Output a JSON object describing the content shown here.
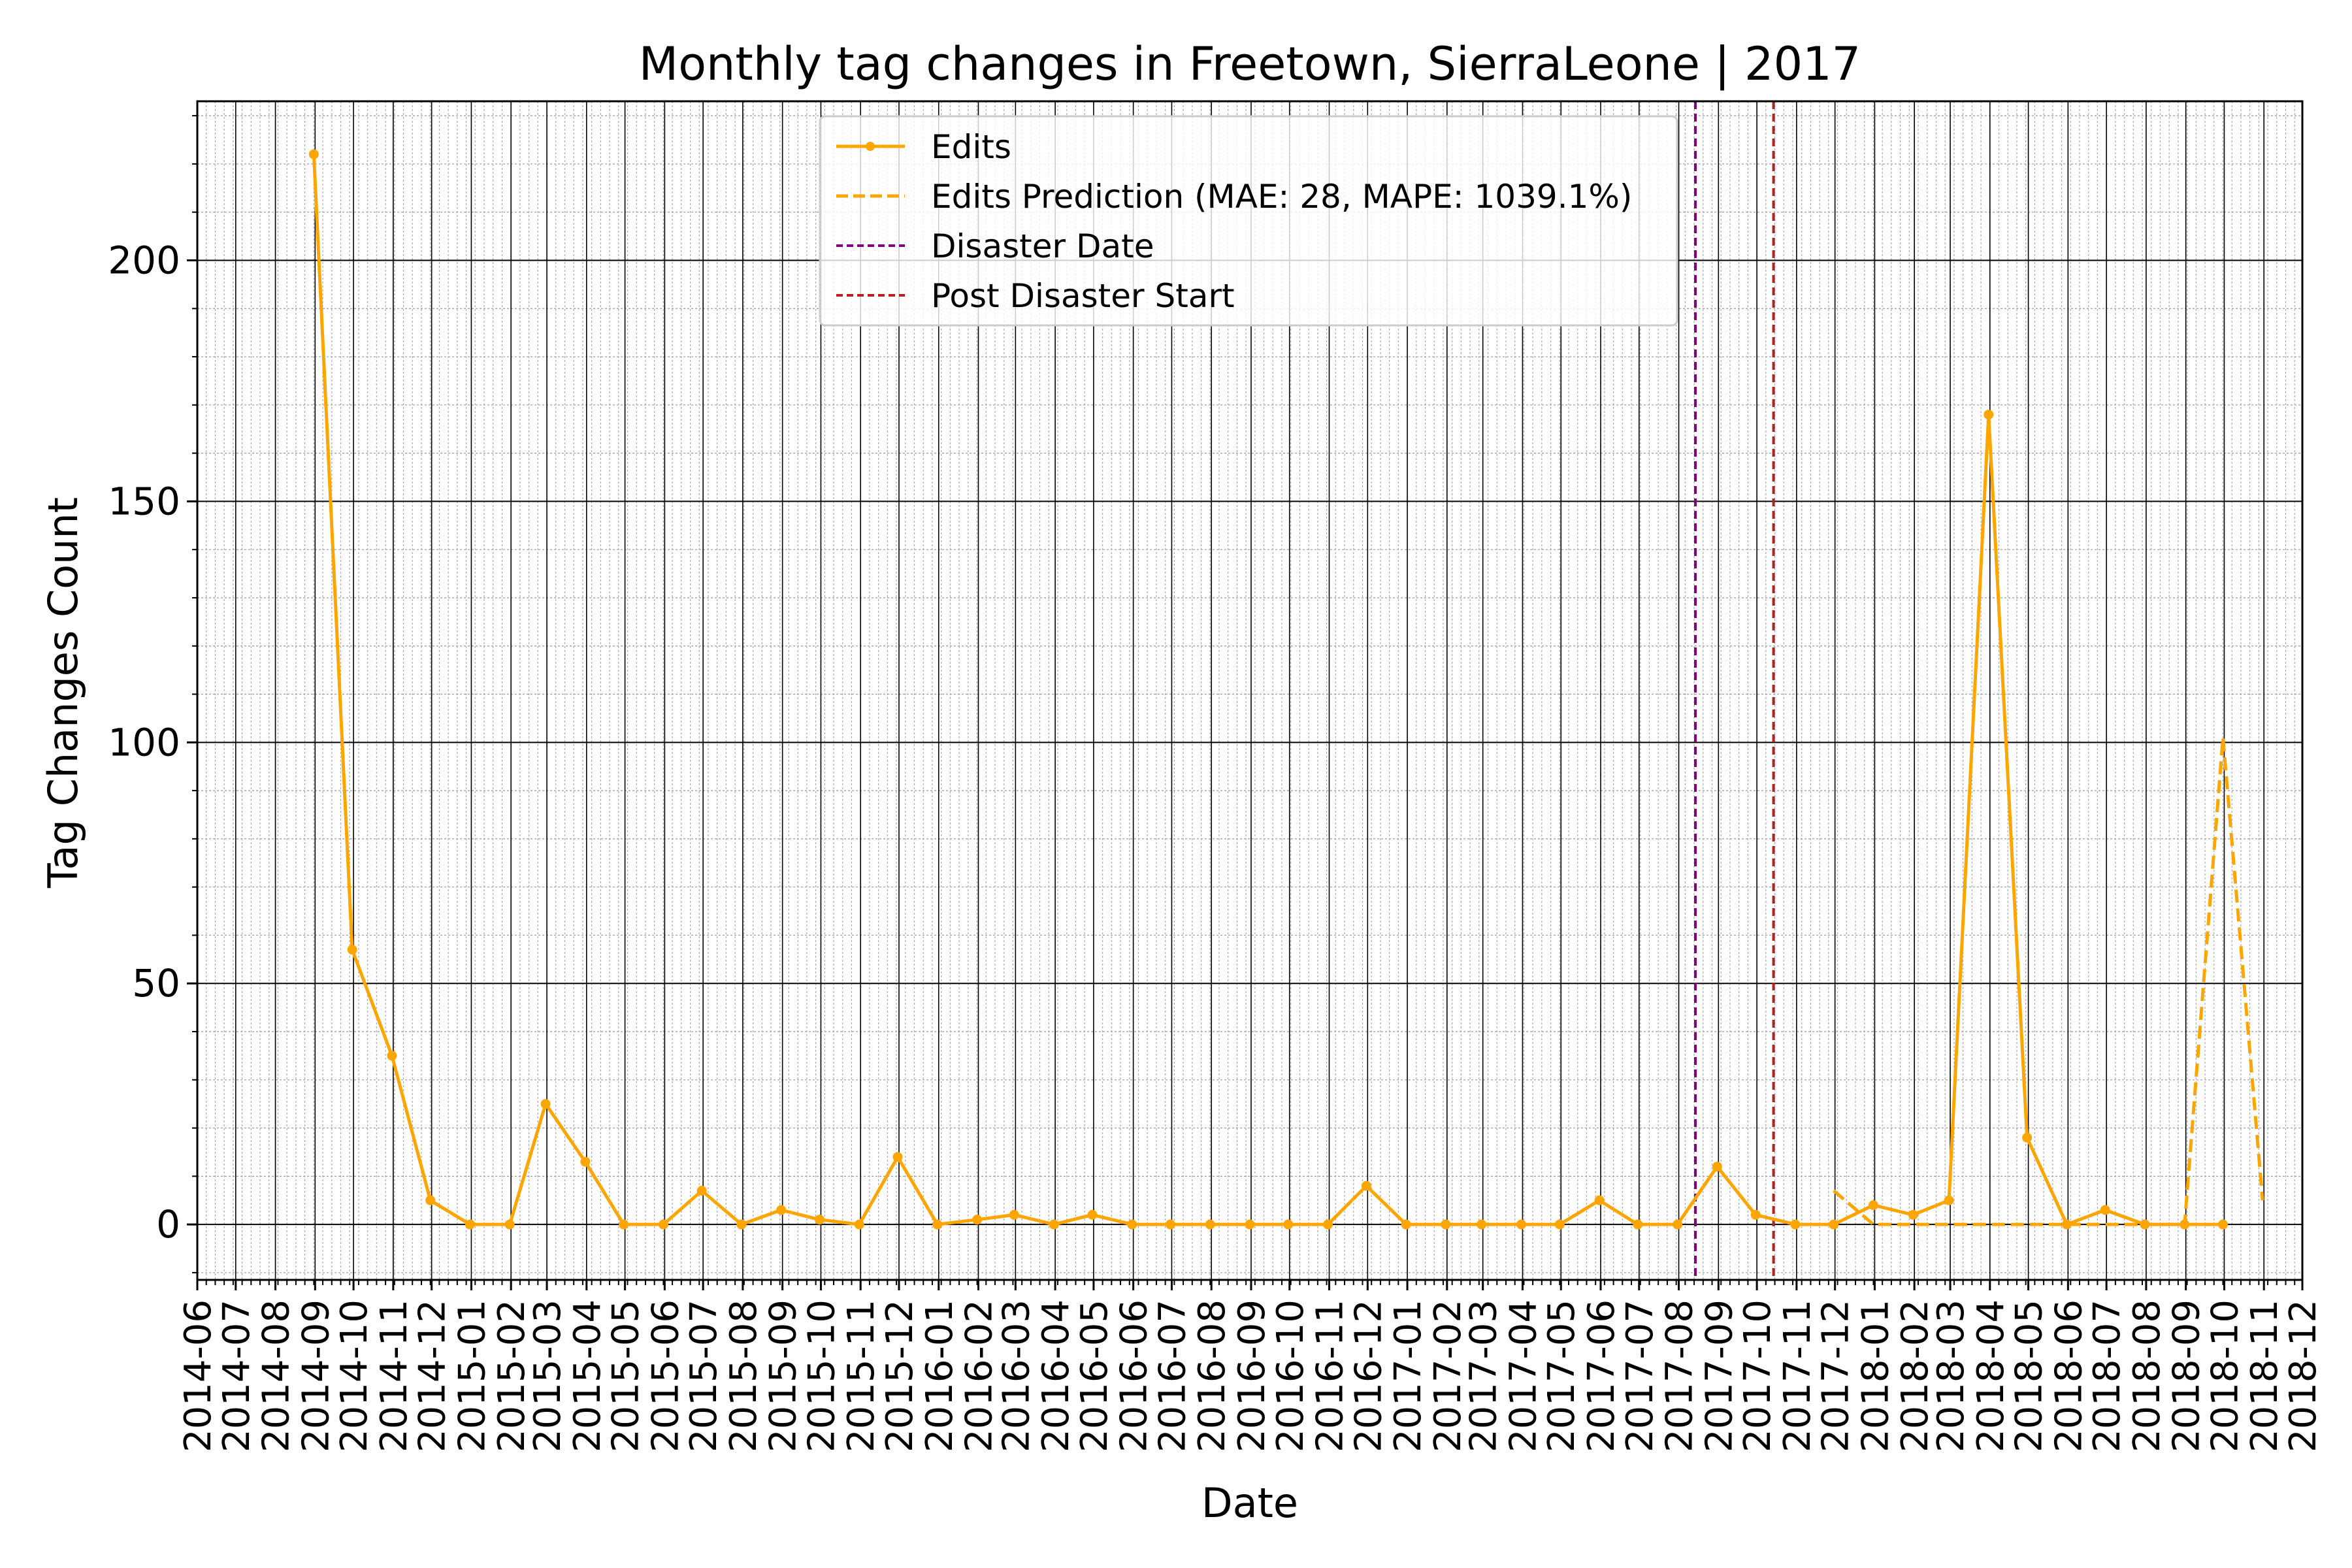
{
  "chart_data": {
    "type": "line",
    "title": "Monthly tag changes in Freetown, SierraLeone | 2017",
    "xlabel": "Date",
    "ylabel": "Tag Changes Count",
    "ylim": [
      -11.5,
      233
    ],
    "xlim": [
      "2014-06-01",
      "2018-12-01"
    ],
    "grid": true,
    "legend_position": "top-center",
    "y_ticks": [
      "0",
      "50",
      "100",
      "150",
      "200"
    ],
    "x_ticks": [
      "2014-06",
      "2014-07",
      "2014-08",
      "2014-09",
      "2014-10",
      "2014-11",
      "2014-12",
      "2015-01",
      "2015-02",
      "2015-03",
      "2015-04",
      "2015-05",
      "2015-06",
      "2015-07",
      "2015-08",
      "2015-09",
      "2015-10",
      "2015-11",
      "2015-12",
      "2016-01",
      "2016-02",
      "2016-03",
      "2016-04",
      "2016-05",
      "2016-06",
      "2016-07",
      "2016-08",
      "2016-09",
      "2016-10",
      "2016-11",
      "2016-12",
      "2017-01",
      "2017-02",
      "2017-03",
      "2017-04",
      "2017-05",
      "2017-06",
      "2017-07",
      "2017-08",
      "2017-09",
      "2017-10",
      "2017-11",
      "2017-12",
      "2018-01",
      "2018-02",
      "2018-03",
      "2018-04",
      "2018-05",
      "2018-06",
      "2018-07",
      "2018-08",
      "2018-09",
      "2018-10",
      "2018-11",
      "2018-12"
    ],
    "series": [
      {
        "name": "Edits",
        "color": "#FFA500",
        "style": "solid-with-markers",
        "x": [
          "2014-08-31",
          "2014-09-30",
          "2014-10-31",
          "2014-11-30",
          "2014-12-31",
          "2015-01-31",
          "2015-02-28",
          "2015-03-31",
          "2015-04-30",
          "2015-05-31",
          "2015-06-30",
          "2015-07-31",
          "2015-08-31",
          "2015-09-30",
          "2015-10-31",
          "2015-11-30",
          "2015-12-31",
          "2016-01-31",
          "2016-02-29",
          "2016-03-31",
          "2016-04-30",
          "2016-05-31",
          "2016-06-30",
          "2016-07-31",
          "2016-08-31",
          "2016-09-30",
          "2016-10-31",
          "2016-11-30",
          "2016-12-31",
          "2017-01-31",
          "2017-02-28",
          "2017-03-31",
          "2017-04-30",
          "2017-05-31",
          "2017-06-30",
          "2017-07-31",
          "2017-08-31",
          "2017-09-30",
          "2017-10-31",
          "2017-11-30",
          "2017-12-31",
          "2018-01-31",
          "2018-02-28",
          "2018-03-31",
          "2018-04-30",
          "2018-05-31",
          "2018-06-30",
          "2018-07-31",
          "2018-08-31",
          "2018-09-30"
        ],
        "values": [
          222,
          57,
          35,
          5,
          0,
          0,
          25,
          13,
          0,
          0,
          7,
          0,
          3,
          1,
          0,
          14,
          0,
          1,
          2,
          0,
          2,
          0,
          0,
          0,
          0,
          0,
          0,
          8,
          0,
          0,
          0,
          0,
          0,
          5,
          0,
          0,
          12,
          2,
          0,
          0,
          4,
          2,
          5,
          168,
          18,
          0,
          3,
          0,
          0,
          0
        ]
      },
      {
        "name": "Edits Prediction (MAE: 28, MAPE: 1039.1%)",
        "color": "#FFA500",
        "style": "dashed",
        "x": [
          "2017-11-30",
          "2017-12-31",
          "2018-01-31",
          "2018-02-28",
          "2018-03-31",
          "2018-04-30",
          "2018-05-31",
          "2018-06-30",
          "2018-07-31",
          "2018-08-31",
          "2018-09-30",
          "2018-10-31"
        ],
        "values": [
          7,
          0,
          0,
          0,
          0,
          0,
          0,
          0,
          0,
          0,
          101,
          5
        ]
      }
    ],
    "vlines": [
      {
        "name": "Disaster Date",
        "x": "2017-08-14",
        "color": "#800080"
      },
      {
        "name": "Post Disaster Start",
        "x": "2017-10-14",
        "color": "#B22222"
      }
    ]
  }
}
